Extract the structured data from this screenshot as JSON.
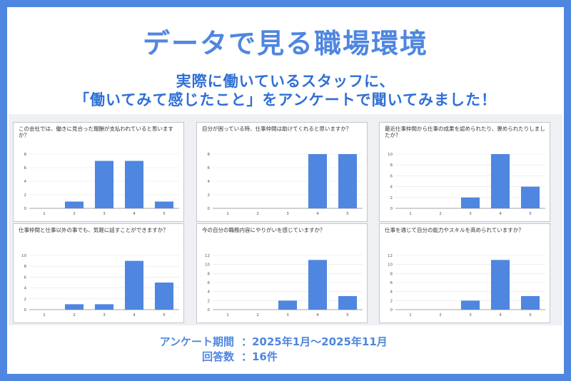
{
  "title": "データで見る職場環境",
  "subtitle_line1": "実際に働いているスタッフに、",
  "subtitle_line2": "「働いてみて感じたこと」をアンケートで聞いてみました！",
  "footer": {
    "period_label": "アンケート期間",
    "period_value": "：2025年1月〜2025年11月",
    "count_label": "回答数",
    "count_value": "：16件"
  },
  "chart_data": [
    {
      "type": "bar",
      "title": "この会社では、働きに見合った報酬が支払われていると思いますか？",
      "categories": [
        "1",
        "2",
        "3",
        "4",
        "5"
      ],
      "values": [
        0,
        1,
        7,
        7,
        1
      ],
      "yticks": [
        0,
        2,
        4,
        6,
        8
      ],
      "ylim": [
        0,
        8
      ]
    },
    {
      "type": "bar",
      "title": "自分が困っている時、仕事仲間は助けてくれると思いますか？",
      "categories": [
        "1",
        "2",
        "3",
        "4",
        "5"
      ],
      "values": [
        0,
        0,
        0,
        8,
        8
      ],
      "yticks": [
        0,
        2,
        4,
        6,
        8
      ],
      "ylim": [
        0,
        8
      ]
    },
    {
      "type": "bar",
      "title": "最近仕事仲間から仕事の成果を認められたり、褒められたりしましたか？",
      "categories": [
        "1",
        "2",
        "3",
        "4",
        "5"
      ],
      "values": [
        0,
        0,
        2,
        10,
        4
      ],
      "yticks": [
        0,
        2,
        4,
        6,
        8,
        10
      ],
      "ylim": [
        0,
        10
      ]
    },
    {
      "type": "bar",
      "title": "仕事仲間と仕事以外の事でも、気軽に話すことができますか？",
      "categories": [
        "1",
        "2",
        "3",
        "4",
        "5"
      ],
      "values": [
        0,
        1,
        1,
        9,
        5
      ],
      "yticks": [
        0,
        2,
        4,
        6,
        8,
        10
      ],
      "ylim": [
        0,
        10
      ]
    },
    {
      "type": "bar",
      "title": "今の自分の職務内容にやりがいを感じていますか？",
      "categories": [
        "1",
        "2",
        "3",
        "4",
        "5"
      ],
      "values": [
        0,
        0,
        2,
        11,
        3
      ],
      "yticks": [
        0,
        2,
        4,
        6,
        8,
        10,
        12
      ],
      "ylim": [
        0,
        12
      ]
    },
    {
      "type": "bar",
      "title": "仕事を通じて自分の能力やスキルを高められていますか？",
      "categories": [
        "1",
        "2",
        "3",
        "4",
        "5"
      ],
      "values": [
        0,
        0,
        2,
        11,
        3
      ],
      "yticks": [
        0,
        2,
        4,
        6,
        8,
        10,
        12
      ],
      "ylim": [
        0,
        12
      ]
    }
  ],
  "colors": {
    "bar": "#4f86e0",
    "accent": "#4f86e0",
    "grid": "#e4e4e4"
  }
}
